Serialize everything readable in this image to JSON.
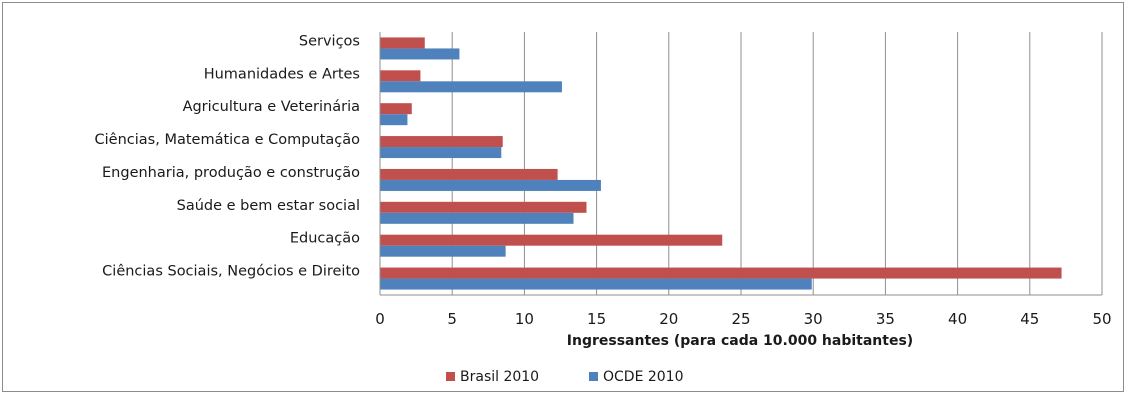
{
  "chart_data": {
    "type": "bar",
    "orientation": "horizontal",
    "categories": [
      "Serviços",
      "Humanidades e Artes",
      "Agricultura e Veterinária",
      "Ciências, Matemática e Computação",
      "Engenharia, produção e construção",
      "Saúde e bem estar social",
      "Educação",
      "Ciências Sociais, Negócios e Direito"
    ],
    "series": [
      {
        "name": "Brasil 2010",
        "color": "#c0504d",
        "values": [
          3.1,
          2.8,
          2.2,
          8.5,
          12.3,
          14.3,
          23.7,
          47.2
        ]
      },
      {
        "name": "OCDE 2010",
        "color": "#4f81bd",
        "values": [
          5.5,
          12.6,
          1.9,
          8.4,
          15.3,
          13.4,
          8.7,
          29.9
        ]
      }
    ],
    "xlabel": "Ingressantes (para cada 10.000 habitantes)",
    "xlim": [
      0,
      50
    ],
    "xticks": [
      "0",
      "5",
      "10",
      "15",
      "20",
      "25",
      "30",
      "35",
      "40",
      "45",
      "50"
    ],
    "grid": "vertical",
    "legend_position": "bottom"
  }
}
